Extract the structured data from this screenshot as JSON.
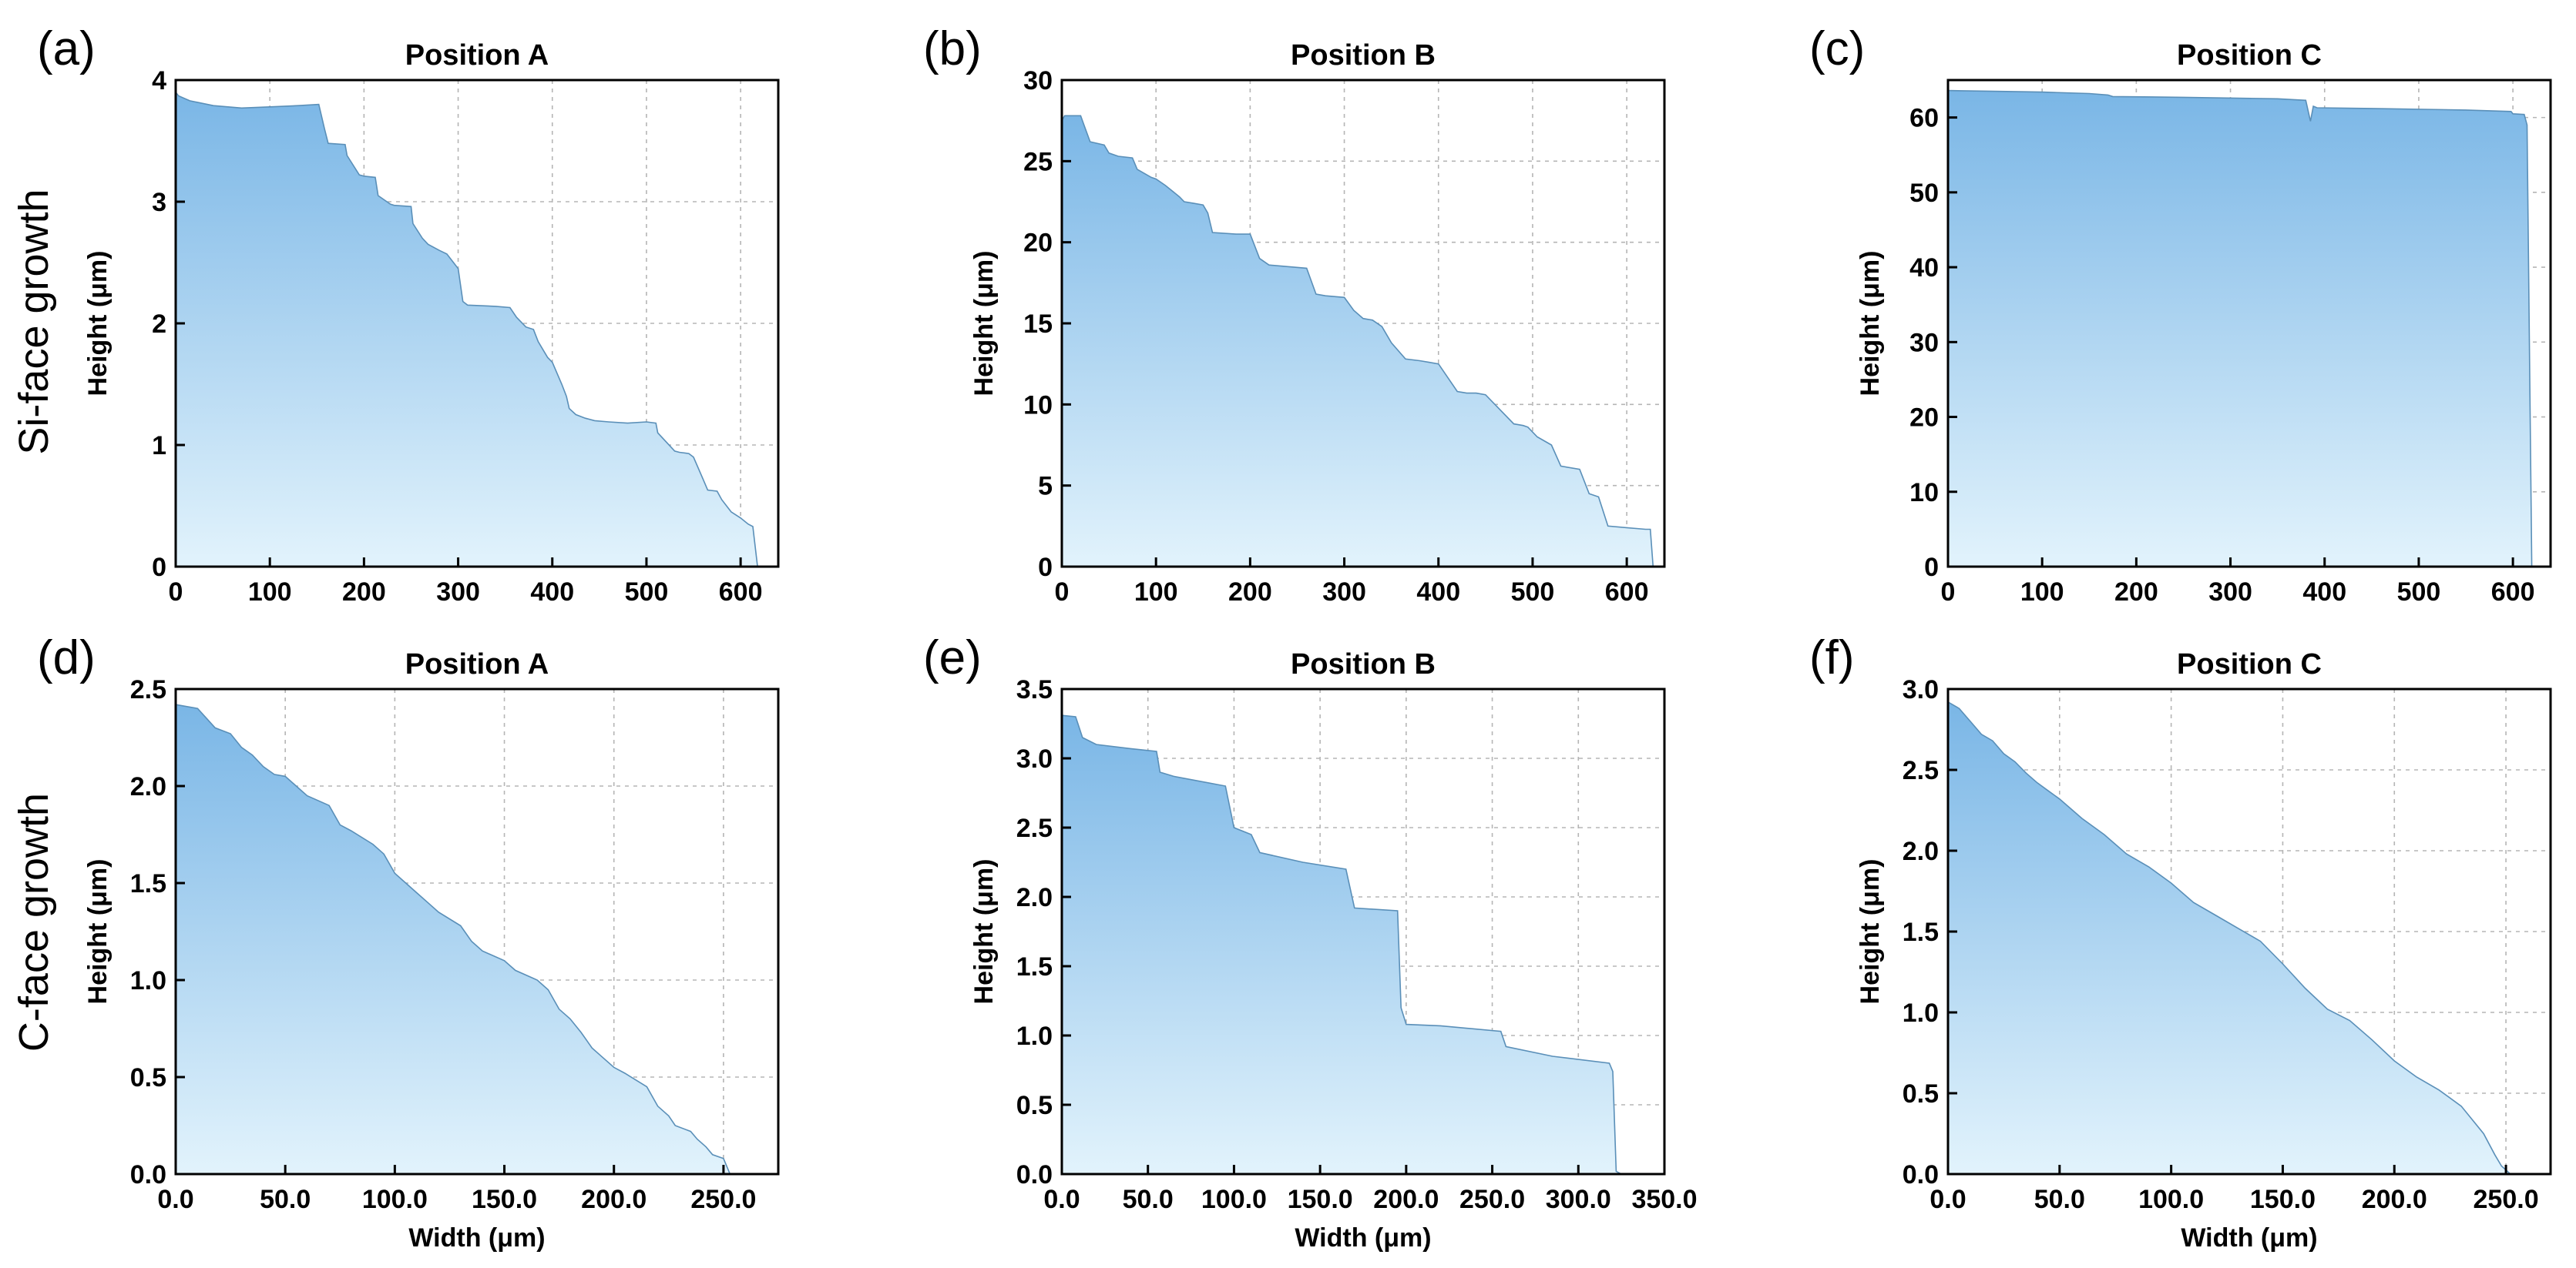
{
  "figure": {
    "row_labels": [
      "Si-face growth",
      "C-face growth"
    ],
    "colors": {
      "fill_top": "#7ab6e6",
      "fill_bottom": "#e2f3fc",
      "outline": "#5a8fb8",
      "grid": "#b5b5b5"
    }
  },
  "chart_data": [
    {
      "type": "area",
      "letter": "(a)",
      "title": "Position A",
      "xlabel": "",
      "ylabel": "Height (μm)",
      "xlim": [
        0,
        640
      ],
      "ylim": [
        0,
        4
      ],
      "xticks": [
        0,
        100,
        200,
        300,
        400,
        500,
        600
      ],
      "yticks": [
        0,
        1,
        2,
        3,
        4
      ],
      "series": [
        {
          "name": "profile",
          "x": [
            0,
            3,
            15,
            40,
            70,
            100,
            130,
            152,
            158,
            162,
            180,
            182,
            195,
            200,
            212,
            215,
            228,
            232,
            250,
            252,
            262,
            268,
            280,
            288,
            295,
            300,
            305,
            310,
            340,
            355,
            362,
            372,
            380,
            385,
            395,
            400,
            410,
            415,
            418,
            425,
            435,
            445,
            460,
            480,
            500,
            510,
            512,
            530,
            535,
            545,
            550,
            560,
            565,
            575,
            580,
            590,
            600,
            608,
            613,
            618
          ],
          "y": [
            3.9,
            3.87,
            3.83,
            3.79,
            3.77,
            3.78,
            3.79,
            3.8,
            3.6,
            3.48,
            3.47,
            3.38,
            3.22,
            3.21,
            3.2,
            3.05,
            2.98,
            2.97,
            2.96,
            2.82,
            2.7,
            2.65,
            2.6,
            2.57,
            2.5,
            2.45,
            2.18,
            2.15,
            2.14,
            2.13,
            2.05,
            1.97,
            1.95,
            1.85,
            1.72,
            1.68,
            1.5,
            1.4,
            1.3,
            1.25,
            1.22,
            1.2,
            1.19,
            1.18,
            1.19,
            1.18,
            1.1,
            0.95,
            0.94,
            0.93,
            0.9,
            0.72,
            0.63,
            0.62,
            0.55,
            0.45,
            0.4,
            0.35,
            0.33,
            0
          ]
        }
      ]
    },
    {
      "type": "area",
      "letter": "(b)",
      "title": "Position B",
      "xlabel": "",
      "ylabel": "Height (μm)",
      "xlim": [
        0,
        640
      ],
      "ylim": [
        0,
        30
      ],
      "xticks": [
        0,
        100,
        200,
        300,
        400,
        500,
        600
      ],
      "yticks": [
        0,
        5,
        10,
        15,
        20,
        25,
        30
      ],
      "series": [
        {
          "name": "profile",
          "x": [
            0,
            3,
            20,
            25,
            30,
            45,
            50,
            60,
            75,
            80,
            95,
            100,
            110,
            125,
            130,
            140,
            150,
            155,
            160,
            185,
            200,
            210,
            220,
            240,
            260,
            270,
            280,
            300,
            310,
            320,
            330,
            340,
            350,
            365,
            380,
            390,
            400,
            420,
            430,
            440,
            450,
            480,
            490,
            495,
            505,
            520,
            530,
            550,
            560,
            570,
            580,
            600,
            620,
            625,
            628
          ],
          "y": [
            27.5,
            27.8,
            27.8,
            27.0,
            26.2,
            26.0,
            25.5,
            25.3,
            25.2,
            24.5,
            24.0,
            23.9,
            23.5,
            22.8,
            22.5,
            22.4,
            22.3,
            21.8,
            20.6,
            20.5,
            20.5,
            19.0,
            18.6,
            18.5,
            18.4,
            16.8,
            16.7,
            16.6,
            15.8,
            15.3,
            15.2,
            14.8,
            13.8,
            12.8,
            12.7,
            12.6,
            12.5,
            10.8,
            10.7,
            10.7,
            10.6,
            8.8,
            8.7,
            8.6,
            8.0,
            7.5,
            6.2,
            6.0,
            4.5,
            4.3,
            2.5,
            2.4,
            2.3,
            2.3,
            0
          ]
        }
      ]
    },
    {
      "type": "area",
      "letter": "(c)",
      "title": "Position C",
      "xlabel": "",
      "ylabel": "Height (μm)",
      "xlim": [
        0,
        640
      ],
      "ylim": [
        0,
        65
      ],
      "xticks": [
        0,
        100,
        200,
        300,
        400,
        500,
        600
      ],
      "yticks": [
        0,
        10,
        20,
        30,
        40,
        50,
        60
      ],
      "series": [
        {
          "name": "profile",
          "x": [
            0,
            50,
            100,
            150,
            170,
            175,
            250,
            350,
            380,
            385,
            388,
            392,
            450,
            550,
            598,
            600,
            612,
            615,
            620
          ],
          "y": [
            63.6,
            63.5,
            63.4,
            63.2,
            63.0,
            62.8,
            62.7,
            62.5,
            62.3,
            59.5,
            61.5,
            61.3,
            61.2,
            61.0,
            60.8,
            60.5,
            60.4,
            59.0,
            0
          ]
        }
      ]
    },
    {
      "type": "area",
      "letter": "(d)",
      "title": "Position A",
      "xlabel": "Width (μm)",
      "ylabel": "Height (μm)",
      "xlim": [
        0,
        275
      ],
      "ylim": [
        0,
        2.5
      ],
      "xticks": [
        0,
        50,
        100,
        150,
        200,
        250
      ],
      "yticks": [
        0.0,
        0.5,
        1.0,
        1.5,
        2.0,
        2.5
      ],
      "tick_format": 1,
      "series": [
        {
          "name": "profile",
          "x": [
            0,
            10,
            14,
            18,
            25,
            30,
            35,
            40,
            45,
            50,
            55,
            60,
            70,
            75,
            80,
            90,
            95,
            100,
            105,
            110,
            115,
            120,
            130,
            135,
            140,
            150,
            155,
            165,
            170,
            175,
            180,
            185,
            190,
            195,
            200,
            205,
            215,
            220,
            225,
            228,
            235,
            238,
            242,
            245,
            250,
            253
          ],
          "y": [
            2.42,
            2.4,
            2.35,
            2.3,
            2.27,
            2.2,
            2.16,
            2.1,
            2.06,
            2.05,
            2.0,
            1.95,
            1.9,
            1.8,
            1.77,
            1.7,
            1.65,
            1.55,
            1.5,
            1.45,
            1.4,
            1.35,
            1.28,
            1.2,
            1.15,
            1.1,
            1.05,
            1.0,
            0.95,
            0.85,
            0.8,
            0.73,
            0.65,
            0.6,
            0.55,
            0.52,
            0.45,
            0.35,
            0.3,
            0.25,
            0.22,
            0.18,
            0.14,
            0.1,
            0.08,
            0
          ]
        }
      ]
    },
    {
      "type": "area",
      "letter": "(e)",
      "title": "Position B",
      "xlabel": "Width (μm)",
      "ylabel": "Height (μm)",
      "xlim": [
        0,
        350
      ],
      "ylim": [
        0,
        3.5
      ],
      "xticks": [
        0,
        50,
        100,
        150,
        200,
        250,
        300,
        350
      ],
      "yticks": [
        0.0,
        0.5,
        1.0,
        1.5,
        2.0,
        2.5,
        3.0,
        3.5
      ],
      "tick_format": 1,
      "series": [
        {
          "name": "profile",
          "x": [
            0,
            8,
            12,
            20,
            40,
            55,
            57,
            65,
            95,
            100,
            110,
            115,
            140,
            165,
            170,
            195,
            197,
            200,
            220,
            255,
            258,
            285,
            318,
            320,
            322,
            325
          ],
          "y": [
            3.31,
            3.3,
            3.15,
            3.1,
            3.07,
            3.05,
            2.9,
            2.87,
            2.8,
            2.5,
            2.45,
            2.32,
            2.25,
            2.2,
            1.92,
            1.9,
            1.2,
            1.08,
            1.07,
            1.03,
            0.92,
            0.85,
            0.8,
            0.74,
            0.02,
            0
          ]
        }
      ]
    },
    {
      "type": "area",
      "letter": "(f)",
      "title": "Position C",
      "xlabel": "Width (μm)",
      "ylabel": "Height (μm)",
      "xlim": [
        0,
        270
      ],
      "ylim": [
        0,
        3.0
      ],
      "xticks": [
        0,
        50,
        100,
        150,
        200,
        250
      ],
      "yticks": [
        0.0,
        0.5,
        1.0,
        1.5,
        2.0,
        2.5,
        3.0
      ],
      "tick_format": 1,
      "series": [
        {
          "name": "profile",
          "x": [
            0,
            5,
            10,
            15,
            20,
            25,
            30,
            35,
            40,
            45,
            50,
            60,
            70,
            80,
            90,
            100,
            110,
            120,
            130,
            140,
            150,
            160,
            170,
            180,
            190,
            200,
            210,
            220,
            230,
            240,
            245,
            248,
            252
          ],
          "y": [
            2.92,
            2.88,
            2.8,
            2.72,
            2.68,
            2.6,
            2.55,
            2.48,
            2.42,
            2.37,
            2.32,
            2.2,
            2.1,
            1.98,
            1.9,
            1.8,
            1.68,
            1.6,
            1.52,
            1.44,
            1.3,
            1.15,
            1.02,
            0.95,
            0.83,
            0.7,
            0.6,
            0.52,
            0.42,
            0.25,
            0.12,
            0.05,
            0
          ]
        }
      ]
    }
  ]
}
